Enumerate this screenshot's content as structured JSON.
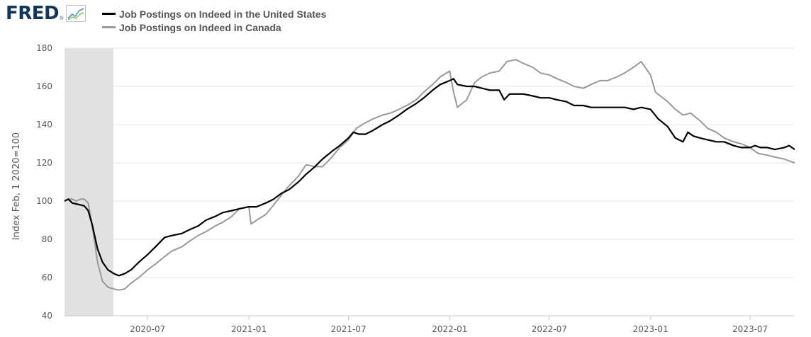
{
  "logo": {
    "text": "FRED",
    "mark": "®",
    "icon": "line-chart-icon"
  },
  "chart_data": {
    "type": "line",
    "title": "",
    "xlabel": "",
    "ylabel": "Index Feb, 1 2020=100",
    "ylim": [
      40,
      180
    ],
    "yticks": [
      40,
      60,
      80,
      100,
      120,
      140,
      160,
      180
    ],
    "xlim": [
      "2020-02-01",
      "2023-09-20"
    ],
    "xticks": [
      "2020-07",
      "2021-01",
      "2021-07",
      "2022-01",
      "2022-07",
      "2023-01",
      "2023-07"
    ],
    "grid": true,
    "legend_position": "top-left",
    "recession_shading": {
      "start": "2020-02-01",
      "end": "2020-04-30",
      "color": "#e1e1e1"
    },
    "series": [
      {
        "name": "Job Postings on Indeed in the United States",
        "color": "#000000",
        "points": [
          [
            "2020-02-01",
            100
          ],
          [
            "2020-02-08",
            101
          ],
          [
            "2020-02-15",
            99
          ],
          [
            "2020-02-22",
            98.5
          ],
          [
            "2020-03-01",
            98
          ],
          [
            "2020-03-08",
            97.5
          ],
          [
            "2020-03-15",
            95
          ],
          [
            "2020-03-22",
            88
          ],
          [
            "2020-04-01",
            75
          ],
          [
            "2020-04-10",
            68
          ],
          [
            "2020-04-20",
            64
          ],
          [
            "2020-05-01",
            62
          ],
          [
            "2020-05-10",
            61
          ],
          [
            "2020-05-20",
            62
          ],
          [
            "2020-06-01",
            64
          ],
          [
            "2020-06-15",
            68
          ],
          [
            "2020-07-01",
            72
          ],
          [
            "2020-07-15",
            76
          ],
          [
            "2020-08-01",
            81
          ],
          [
            "2020-08-15",
            82
          ],
          [
            "2020-09-01",
            83
          ],
          [
            "2020-09-15",
            85
          ],
          [
            "2020-10-01",
            87
          ],
          [
            "2020-10-15",
            90
          ],
          [
            "2020-11-01",
            92
          ],
          [
            "2020-11-15",
            94
          ],
          [
            "2020-12-01",
            95
          ],
          [
            "2020-12-15",
            96
          ],
          [
            "2021-01-01",
            97
          ],
          [
            "2021-01-15",
            97
          ],
          [
            "2021-02-01",
            99
          ],
          [
            "2021-02-15",
            101
          ],
          [
            "2021-03-01",
            104
          ],
          [
            "2021-03-15",
            106
          ],
          [
            "2021-04-01",
            110
          ],
          [
            "2021-04-15",
            114
          ],
          [
            "2021-05-01",
            118
          ],
          [
            "2021-05-15",
            122
          ],
          [
            "2021-06-01",
            126
          ],
          [
            "2021-06-15",
            129
          ],
          [
            "2021-07-01",
            133
          ],
          [
            "2021-07-10",
            136
          ],
          [
            "2021-07-20",
            135
          ],
          [
            "2021-08-01",
            135
          ],
          [
            "2021-08-15",
            137
          ],
          [
            "2021-09-01",
            140
          ],
          [
            "2021-09-15",
            142
          ],
          [
            "2021-10-01",
            145
          ],
          [
            "2021-10-15",
            148
          ],
          [
            "2021-11-01",
            151
          ],
          [
            "2021-11-15",
            154
          ],
          [
            "2021-12-01",
            158
          ],
          [
            "2021-12-15",
            161
          ],
          [
            "2022-01-01",
            163
          ],
          [
            "2022-01-08",
            164
          ],
          [
            "2022-01-15",
            161
          ],
          [
            "2022-02-01",
            160
          ],
          [
            "2022-02-15",
            160
          ],
          [
            "2022-03-01",
            159
          ],
          [
            "2022-03-15",
            158
          ],
          [
            "2022-04-01",
            158
          ],
          [
            "2022-04-10",
            153
          ],
          [
            "2022-04-20",
            156
          ],
          [
            "2022-05-01",
            156
          ],
          [
            "2022-05-15",
            156
          ],
          [
            "2022-06-01",
            155
          ],
          [
            "2022-06-15",
            154
          ],
          [
            "2022-07-01",
            154
          ],
          [
            "2022-07-15",
            153
          ],
          [
            "2022-08-01",
            152
          ],
          [
            "2022-08-15",
            150
          ],
          [
            "2022-09-01",
            150
          ],
          [
            "2022-09-15",
            149
          ],
          [
            "2022-10-01",
            149
          ],
          [
            "2022-10-15",
            149
          ],
          [
            "2022-11-01",
            149
          ],
          [
            "2022-11-15",
            149
          ],
          [
            "2022-12-01",
            148
          ],
          [
            "2022-12-15",
            149
          ],
          [
            "2023-01-01",
            148
          ],
          [
            "2023-01-15",
            143
          ],
          [
            "2023-02-01",
            139
          ],
          [
            "2023-02-15",
            133
          ],
          [
            "2023-03-01",
            131
          ],
          [
            "2023-03-10",
            136
          ],
          [
            "2023-03-20",
            134
          ],
          [
            "2023-04-01",
            133
          ],
          [
            "2023-04-15",
            132
          ],
          [
            "2023-05-01",
            131
          ],
          [
            "2023-05-15",
            131
          ],
          [
            "2023-06-01",
            129
          ],
          [
            "2023-06-15",
            128
          ],
          [
            "2023-07-01",
            128
          ],
          [
            "2023-07-10",
            129
          ],
          [
            "2023-07-20",
            128
          ],
          [
            "2023-08-01",
            128
          ],
          [
            "2023-08-15",
            127
          ],
          [
            "2023-09-01",
            128
          ],
          [
            "2023-09-10",
            129
          ],
          [
            "2023-09-20",
            127
          ]
        ]
      },
      {
        "name": "Job Postings on Indeed in Canada",
        "color": "#999999",
        "points": [
          [
            "2020-02-01",
            100
          ],
          [
            "2020-02-08",
            101
          ],
          [
            "2020-02-15",
            101
          ],
          [
            "2020-02-22",
            100
          ],
          [
            "2020-03-01",
            101
          ],
          [
            "2020-03-08",
            101
          ],
          [
            "2020-03-15",
            99
          ],
          [
            "2020-03-22",
            88
          ],
          [
            "2020-04-01",
            68
          ],
          [
            "2020-04-10",
            58
          ],
          [
            "2020-04-20",
            55
          ],
          [
            "2020-05-01",
            54
          ],
          [
            "2020-05-10",
            53.5
          ],
          [
            "2020-05-20",
            54
          ],
          [
            "2020-06-01",
            57
          ],
          [
            "2020-06-15",
            60
          ],
          [
            "2020-07-01",
            64
          ],
          [
            "2020-07-15",
            67
          ],
          [
            "2020-08-01",
            71
          ],
          [
            "2020-08-15",
            74
          ],
          [
            "2020-09-01",
            76
          ],
          [
            "2020-09-15",
            79
          ],
          [
            "2020-10-01",
            82
          ],
          [
            "2020-10-15",
            84
          ],
          [
            "2020-11-01",
            87
          ],
          [
            "2020-11-15",
            89
          ],
          [
            "2020-12-01",
            92
          ],
          [
            "2020-12-15",
            96
          ],
          [
            "2021-01-01",
            97
          ],
          [
            "2021-01-05",
            88
          ],
          [
            "2021-01-15",
            90
          ],
          [
            "2021-02-01",
            93
          ],
          [
            "2021-02-15",
            98
          ],
          [
            "2021-03-01",
            103
          ],
          [
            "2021-03-15",
            108
          ],
          [
            "2021-04-01",
            113
          ],
          [
            "2021-04-15",
            119
          ],
          [
            "2021-05-01",
            118
          ],
          [
            "2021-05-15",
            118
          ],
          [
            "2021-06-01",
            123
          ],
          [
            "2021-06-15",
            128
          ],
          [
            "2021-07-01",
            132
          ],
          [
            "2021-07-15",
            138
          ],
          [
            "2021-08-01",
            141
          ],
          [
            "2021-08-15",
            143
          ],
          [
            "2021-09-01",
            145
          ],
          [
            "2021-09-15",
            146
          ],
          [
            "2021-10-01",
            148
          ],
          [
            "2021-10-15",
            150
          ],
          [
            "2021-11-01",
            153
          ],
          [
            "2021-11-15",
            157
          ],
          [
            "2021-12-01",
            161
          ],
          [
            "2021-12-15",
            165
          ],
          [
            "2022-01-01",
            168
          ],
          [
            "2022-01-08",
            157
          ],
          [
            "2022-01-15",
            149
          ],
          [
            "2022-02-01",
            153
          ],
          [
            "2022-02-15",
            162
          ],
          [
            "2022-03-01",
            165
          ],
          [
            "2022-03-15",
            167
          ],
          [
            "2022-04-01",
            168
          ],
          [
            "2022-04-15",
            173
          ],
          [
            "2022-05-01",
            174
          ],
          [
            "2022-05-15",
            172
          ],
          [
            "2022-06-01",
            170
          ],
          [
            "2022-06-15",
            167
          ],
          [
            "2022-07-01",
            166
          ],
          [
            "2022-07-15",
            164
          ],
          [
            "2022-08-01",
            162
          ],
          [
            "2022-08-15",
            160
          ],
          [
            "2022-09-01",
            159
          ],
          [
            "2022-09-15",
            161
          ],
          [
            "2022-10-01",
            163
          ],
          [
            "2022-10-15",
            163
          ],
          [
            "2022-11-01",
            165
          ],
          [
            "2022-11-15",
            167
          ],
          [
            "2022-12-01",
            170
          ],
          [
            "2022-12-15",
            173
          ],
          [
            "2023-01-01",
            166
          ],
          [
            "2023-01-10",
            157
          ],
          [
            "2023-02-01",
            152
          ],
          [
            "2023-02-15",
            148
          ],
          [
            "2023-03-01",
            145
          ],
          [
            "2023-03-15",
            146
          ],
          [
            "2023-04-01",
            142
          ],
          [
            "2023-04-15",
            138
          ],
          [
            "2023-05-01",
            136
          ],
          [
            "2023-05-15",
            133
          ],
          [
            "2023-06-01",
            131
          ],
          [
            "2023-06-15",
            130
          ],
          [
            "2023-07-01",
            128
          ],
          [
            "2023-07-15",
            125
          ],
          [
            "2023-08-01",
            124
          ],
          [
            "2023-08-15",
            123
          ],
          [
            "2023-09-01",
            122
          ],
          [
            "2023-09-10",
            121
          ],
          [
            "2023-09-20",
            120
          ]
        ]
      }
    ]
  }
}
